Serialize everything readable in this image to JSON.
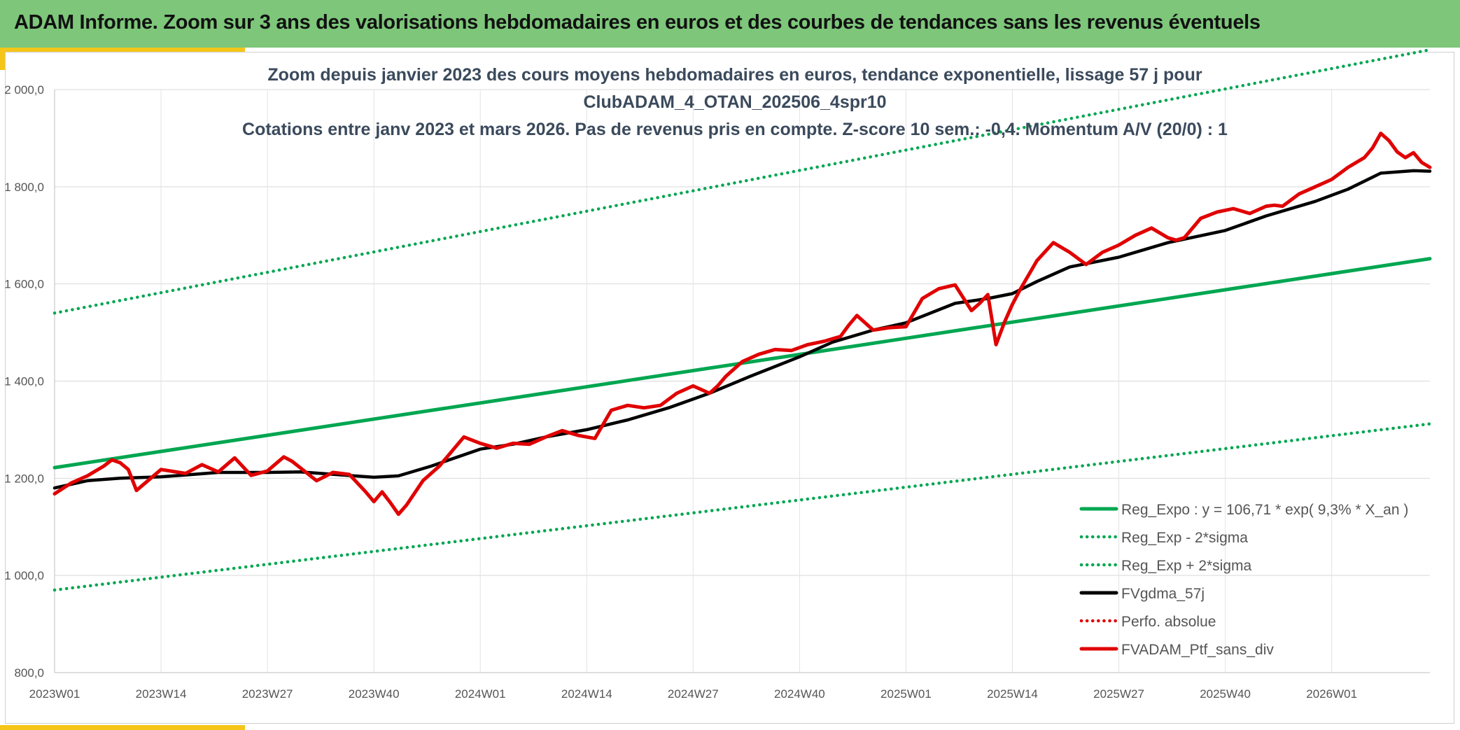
{
  "header": {
    "title": "ADAM Informe. Zoom sur 3 ans des valorisations hebdomadaires en euros et des courbes de tendances sans les revenus éventuels"
  },
  "chart_data": {
    "type": "line",
    "title_lines": [
      "Zoom depuis janvier 2023 des cours moyens hebdomadaires en euros, tendance exponentielle, lissage 57 j pour",
      "ClubADAM_4_OTAN_202506_4spr10",
      "Cotations entre janv 2023 et mars 2026. Pas de revenus pris en compte. Z-score 10 sem.: -0,4. Momentum A/V (20/0) : 1"
    ],
    "x_tick_labels": [
      "2023W01",
      "2023W14",
      "2023W27",
      "2023W40",
      "2024W01",
      "2024W14",
      "2024W27",
      "2024W40",
      "2025W01",
      "2025W14",
      "2025W27",
      "2025W40",
      "2026W01"
    ],
    "x_tick_weeks": [
      0,
      13,
      26,
      39,
      52,
      65,
      78,
      91,
      104,
      117,
      130,
      143,
      156
    ],
    "x_max_week": 168,
    "ylim": [
      800,
      2000
    ],
    "y_ticks": [
      800,
      1000,
      1200,
      1400,
      1600,
      1800,
      2000
    ],
    "y_tick_labels": [
      "800,0",
      "1 000,0",
      "1 200,0",
      "1 400,0",
      "1 600,0",
      "1 800,0",
      "2 000,0"
    ],
    "grid": true,
    "legend_position": "bottom-right",
    "legend": [
      {
        "name": "Reg_Expo : y = 106,71 * exp( 9,3% *  X_an )",
        "color": "#00a651",
        "style": "solid"
      },
      {
        "name": "Reg_Exp - 2*sigma",
        "color": "#00a651",
        "style": "dotted"
      },
      {
        "name": "Reg_Exp + 2*sigma",
        "color": "#00a651",
        "style": "dotted"
      },
      {
        "name": "FVgdma_57j",
        "color": "#000000",
        "style": "solid"
      },
      {
        "name": "Perfo. absolue",
        "color": "#e00000",
        "style": "dotted"
      },
      {
        "name": "FVADAM_Ptf_sans_div",
        "color": "#e00000",
        "style": "solid"
      }
    ],
    "series": [
      {
        "name": "Reg_Expo",
        "color": "#00a651",
        "style": "solid",
        "x": [
          0,
          168
        ],
        "values": [
          1222,
          1652
        ]
      },
      {
        "name": "Reg_Exp - 2*sigma",
        "color": "#00a651",
        "style": "dotted",
        "x": [
          0,
          168
        ],
        "values": [
          970,
          1312
        ]
      },
      {
        "name": "Reg_Exp + 2*sigma",
        "color": "#00a651",
        "style": "dotted",
        "x": [
          0,
          168
        ],
        "values": [
          1540,
          2082
        ]
      },
      {
        "name": "FVgdma_57j",
        "color": "#000000",
        "style": "solid",
        "x": [
          0,
          4,
          8,
          13,
          20,
          26,
          30,
          35,
          39,
          42,
          46,
          52,
          56,
          60,
          65,
          70,
          75,
          80,
          85,
          91,
          95,
          100,
          104,
          110,
          114,
          117,
          120,
          124,
          130,
          136,
          143,
          148,
          154,
          158,
          162,
          166,
          168
        ],
        "values": [
          1180,
          1195,
          1200,
          1203,
          1212,
          1212,
          1213,
          1207,
          1202,
          1205,
          1225,
          1260,
          1270,
          1285,
          1300,
          1320,
          1345,
          1375,
          1410,
          1450,
          1480,
          1505,
          1520,
          1560,
          1570,
          1580,
          1605,
          1635,
          1655,
          1685,
          1710,
          1740,
          1770,
          1795,
          1828,
          1833,
          1832
        ]
      },
      {
        "name": "FVADAM_Ptf_sans_div",
        "color": "#e00000",
        "style": "solid",
        "x": [
          0,
          2,
          4,
          6,
          7,
          8,
          9,
          10,
          13,
          16,
          18,
          20,
          22,
          24,
          26,
          28,
          29,
          32,
          34,
          36,
          38,
          39,
          40,
          41,
          42,
          43,
          45,
          47,
          49,
          50,
          52,
          54,
          56,
          58,
          60,
          62,
          64,
          66,
          68,
          70,
          72,
          74,
          76,
          78,
          80,
          81,
          82,
          84,
          86,
          88,
          90,
          92,
          94,
          96,
          97,
          98,
          100,
          102,
          104,
          106,
          107,
          108,
          110,
          112,
          113,
          114,
          115,
          116,
          117,
          118,
          120,
          122,
          124,
          126,
          128,
          130,
          132,
          134,
          136,
          137,
          138,
          140,
          142,
          144,
          146,
          148,
          149,
          150,
          152,
          154,
          156,
          158,
          160,
          161,
          162,
          163,
          164,
          165,
          166,
          167,
          168
        ],
        "values": [
          1168,
          1190,
          1205,
          1225,
          1238,
          1232,
          1218,
          1175,
          1218,
          1210,
          1228,
          1213,
          1242,
          1206,
          1215,
          1244,
          1235,
          1195,
          1212,
          1208,
          1172,
          1152,
          1172,
          1150,
          1126,
          1145,
          1195,
          1225,
          1265,
          1285,
          1272,
          1262,
          1272,
          1270,
          1285,
          1298,
          1288,
          1282,
          1340,
          1350,
          1345,
          1350,
          1375,
          1390,
          1375,
          1390,
          1410,
          1440,
          1455,
          1465,
          1463,
          1475,
          1482,
          1492,
          1515,
          1535,
          1505,
          1510,
          1512,
          1570,
          1580,
          1590,
          1598,
          1545,
          1560,
          1578,
          1475,
          1520,
          1558,
          1590,
          1648,
          1685,
          1665,
          1640,
          1665,
          1680,
          1700,
          1715,
          1695,
          1690,
          1695,
          1735,
          1748,
          1755,
          1745,
          1760,
          1762,
          1760,
          1785,
          1800,
          1815,
          1840,
          1860,
          1880,
          1910,
          1895,
          1872,
          1860,
          1870,
          1850,
          1840
        ]
      }
    ]
  }
}
